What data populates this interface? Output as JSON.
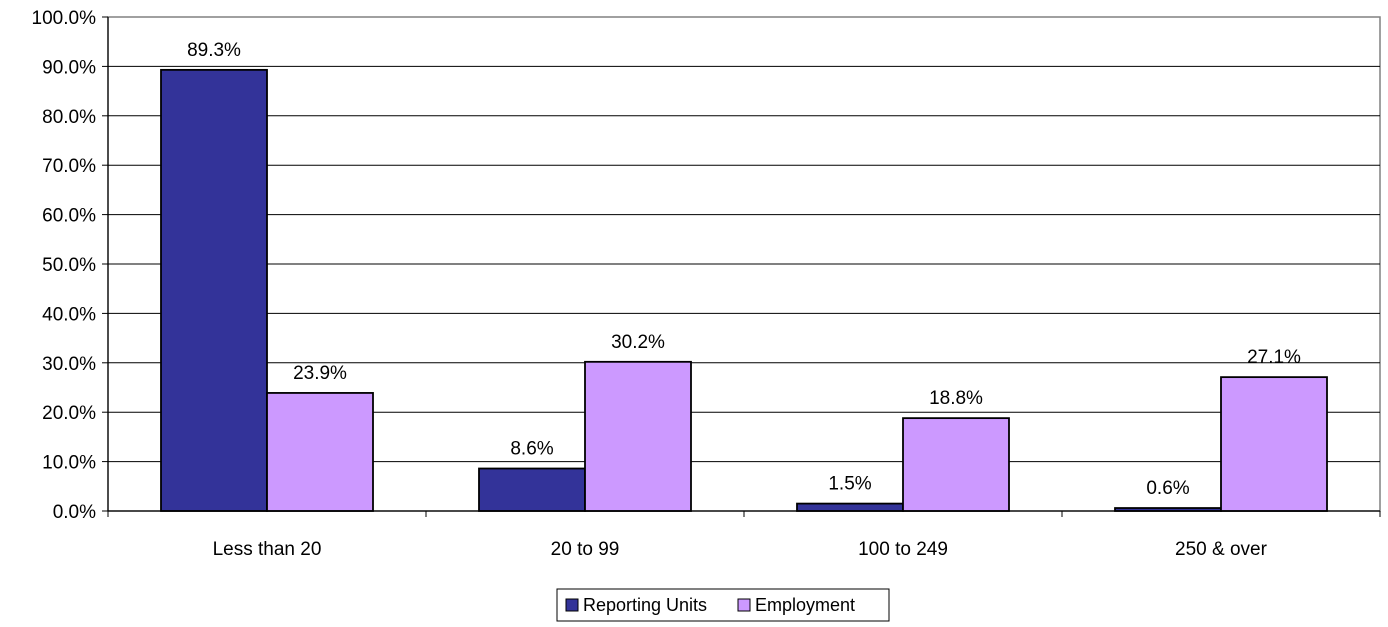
{
  "chart_data": {
    "type": "bar",
    "title": "",
    "xlabel": "",
    "ylabel": "",
    "categories": [
      "Less than 20",
      "20 to 99",
      "100 to 249",
      "250 & over"
    ],
    "series": [
      {
        "name": "Reporting Units",
        "values": [
          89.3,
          8.6,
          1.5,
          0.6
        ],
        "labels": [
          "89.3%",
          "8.6%",
          "1.5%",
          "0.6%"
        ],
        "color": "#333399"
      },
      {
        "name": "Employment",
        "values": [
          23.9,
          30.2,
          18.8,
          27.1
        ],
        "labels": [
          "23.9%",
          "30.2%",
          "18.8%",
          "27.1%"
        ],
        "color": "#CC99FF"
      }
    ],
    "ylim": [
      0,
      100
    ],
    "yticks": [
      0,
      10,
      20,
      30,
      40,
      50,
      60,
      70,
      80,
      90,
      100
    ],
    "ytick_labels": [
      "0.0%",
      "10.0%",
      "20.0%",
      "30.0%",
      "40.0%",
      "50.0%",
      "60.0%",
      "70.0%",
      "80.0%",
      "90.0%",
      "100.0%"
    ],
    "grid": true,
    "legend_position": "bottom-center"
  }
}
